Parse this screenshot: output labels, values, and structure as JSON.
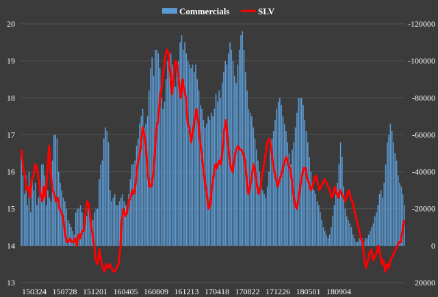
{
  "chart_data": {
    "type": "bar",
    "title": "",
    "legend_placement": "top",
    "legend": [
      {
        "name": "Commercials",
        "color": "#5b9bd5",
        "mark": "bar"
      },
      {
        "name": "SLV",
        "color": "#ff0000",
        "mark": "line"
      }
    ],
    "x_tick_labels": [
      "150324",
      "150728",
      "151201",
      "160405",
      "160809",
      "161213",
      "170418",
      "170822",
      "171226",
      "180501",
      "180904"
    ],
    "left_axis": {
      "ticks": [
        "13",
        "14",
        "15",
        "16",
        "17",
        "18",
        "19",
        "20"
      ],
      "ylim": [
        13,
        20
      ]
    },
    "right_axis": {
      "ticks": [
        "20000",
        "0",
        "-20000",
        "-40000",
        "-60000",
        "-80000",
        "-100000",
        "-120000"
      ],
      "ylim": [
        20000,
        -120000
      ],
      "reversed": true
    },
    "grid": true,
    "series": [
      {
        "name": "Commercials",
        "axis": "right",
        "values": [
          -50000,
          -38000,
          -28000,
          -38000,
          -22000,
          -40000,
          -18000,
          -36000,
          -30000,
          -34000,
          -22000,
          -26000,
          -32000,
          -44000,
          -44000,
          -38000,
          -22000,
          -30000,
          -26000,
          -24000,
          -46000,
          -60000,
          -60000,
          -58000,
          -40000,
          -34000,
          -30000,
          -26000,
          -24000,
          -20000,
          -14000,
          -12000,
          -10000,
          -8000,
          -6000,
          -18000,
          -20000,
          -20000,
          -22000,
          -18000,
          -10000,
          -12000,
          -16000,
          -20000,
          -20000,
          -12000,
          -14000,
          -18000,
          -20000,
          -20000,
          -36000,
          -44000,
          -46000,
          -58000,
          -64000,
          -62000,
          -56000,
          -30000,
          -24000,
          -26000,
          -28000,
          -22000,
          -22000,
          -24000,
          -26000,
          -28000,
          -24000,
          -22000,
          -20000,
          -28000,
          -36000,
          -44000,
          -44000,
          -46000,
          -54000,
          -58000,
          -66000,
          -70000,
          -74000,
          -64000,
          -66000,
          -70000,
          -84000,
          -96000,
          -102000,
          -92000,
          -106000,
          -106000,
          -104000,
          -96000,
          -80000,
          -74000,
          -78000,
          -90000,
          -100000,
          -102000,
          -104000,
          -98000,
          -94000,
          -86000,
          -96000,
          -100000,
          -110000,
          -114000,
          -106000,
          -110000,
          -104000,
          -100000,
          -98000,
          -96000,
          -98000,
          -94000,
          -98000,
          -90000,
          -84000,
          -76000,
          -74000,
          -68000,
          -64000,
          -66000,
          -70000,
          -68000,
          -72000,
          -70000,
          -74000,
          -82000,
          -78000,
          -84000,
          -80000,
          -88000,
          -94000,
          -100000,
          -98000,
          -104000,
          -110000,
          -106000,
          -100000,
          -92000,
          -88000,
          -98000,
          -106000,
          -114000,
          -116000,
          -106000,
          -94000,
          -84000,
          -74000,
          -72000,
          -70000,
          -64000,
          -58000,
          -52000,
          -46000,
          -40000,
          -36000,
          -30000,
          -28000,
          -26000,
          -32000,
          -40000,
          -56000,
          -58000,
          -62000,
          -68000,
          -74000,
          -78000,
          -80000,
          -76000,
          -70000,
          -66000,
          -62000,
          -56000,
          -50000,
          -44000,
          -52000,
          -56000,
          -64000,
          -72000,
          -80000,
          -80000,
          -80000,
          -76000,
          -68000,
          -62000,
          -56000,
          -48000,
          -40000,
          -34000,
          -30000,
          -28000,
          -24000,
          -22000,
          -18000,
          -14000,
          -10000,
          -8000,
          -6000,
          -4000,
          -6000,
          -10000,
          -16000,
          -22000,
          -28000,
          -34000,
          -44000,
          -56000,
          -48000,
          -32000,
          -20000,
          -16000,
          -14000,
          -12000,
          -10000,
          -6000,
          -4000,
          -2000,
          -2000,
          -4000,
          -6000,
          -4000,
          -2000,
          -4000,
          -4000,
          -6000,
          -8000,
          -10000,
          -12000,
          -16000,
          -18000,
          -22000,
          -28000,
          -30000,
          -26000,
          -34000,
          -44000,
          -56000,
          -60000,
          -66000,
          -62000,
          -56000,
          -50000,
          -46000,
          -38000,
          -34000,
          -32000,
          -28000,
          -22000
        ]
      },
      {
        "name": "SLV",
        "axis": "left",
        "values": [
          16.6,
          16.1,
          15.9,
          15.5,
          15.6,
          15.3,
          15.8,
          15.9,
          16.2,
          16.1,
          15.8,
          15.4,
          15.2,
          15.6,
          15.3,
          16.0,
          16.7,
          15.9,
          15.5,
          15.4,
          15.2,
          15.3,
          15.0,
          14.9,
          14.8,
          14.4,
          14.1,
          14.1,
          14.2,
          14.1,
          14.1,
          14.2,
          14.0,
          14.3,
          14.2,
          14.4,
          14.4,
          14.9,
          15.2,
          15.1,
          14.7,
          14.3,
          14.0,
          13.6,
          13.5,
          13.9,
          13.6,
          13.4,
          13.3,
          13.5,
          13.4,
          13.5,
          13.4,
          13.3,
          13.3,
          13.4,
          13.5,
          13.9,
          14.7,
          15.0,
          14.8,
          14.9,
          15.2,
          15.3,
          15.5,
          15.4,
          15.7,
          16.2,
          16.4,
          16.7,
          17.2,
          17.0,
          16.6,
          15.9,
          15.6,
          15.6,
          15.9,
          16.5,
          17.2,
          17.4,
          18.0,
          18.3,
          18.7,
          19.1,
          19.3,
          19.2,
          18.6,
          18.1,
          18.7,
          19.0,
          18.9,
          18.4,
          18.0,
          18.5,
          18.2,
          18.0,
          17.3,
          17.2,
          16.8,
          17.1,
          17.4,
          17.7,
          17.4,
          16.9,
          16.5,
          16.1,
          15.7,
          15.4,
          15.0,
          15.1,
          15.6,
          15.9,
          16.2,
          16.1,
          16.3,
          16.2,
          16.5,
          17.1,
          17.4,
          16.9,
          16.4,
          16.1,
          16.0,
          16.4,
          16.6,
          16.7,
          16.6,
          16.6,
          16.5,
          16.3,
          15.8,
          15.4,
          15.6,
          15.9,
          16.2,
          16.0,
          15.6,
          15.4,
          15.6,
          15.9,
          16.2,
          16.5,
          16.8,
          16.9,
          16.7,
          16.3,
          16.0,
          15.8,
          15.6,
          15.8,
          15.9,
          16.1,
          16.3,
          16.4,
          16.2,
          16.1,
          15.8,
          15.4,
          15.1,
          15.0,
          15.3,
          15.6,
          15.9,
          16.1,
          16.1,
          15.8,
          15.7,
          15.5,
          15.6,
          15.8,
          15.9,
          15.7,
          15.5,
          15.6,
          15.7,
          15.8,
          15.7,
          15.6,
          15.5,
          15.3,
          15.4,
          15.6,
          15.4,
          15.3,
          15.5,
          15.4,
          15.3,
          15.2,
          15.4,
          15.5,
          15.3,
          15.2,
          15.0,
          14.8,
          14.6,
          14.4,
          14.2,
          14.1,
          13.6,
          13.4,
          13.6,
          13.8,
          13.9,
          13.6,
          13.7,
          13.8,
          14.0,
          13.8,
          13.5,
          13.6,
          13.3,
          13.5,
          13.4,
          13.6,
          13.7,
          13.8,
          13.9,
          14.0,
          14.1,
          14.1,
          14.4,
          14.7
        ]
      }
    ]
  }
}
